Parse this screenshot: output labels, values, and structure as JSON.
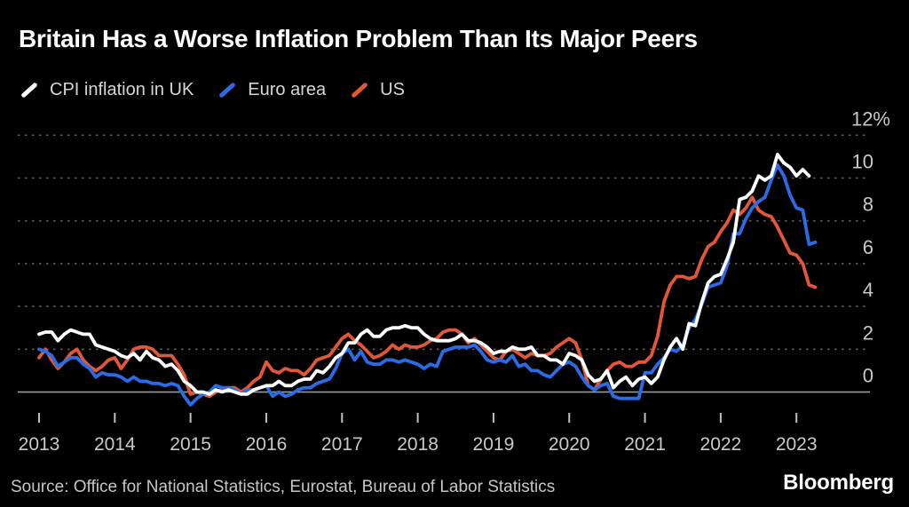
{
  "title": "Britain Has a Worse Inflation Problem Than Its Major Peers",
  "footer": {
    "source": "Source: Office for National Statistics, Eurostat, Bureau of Labor Statistics",
    "brand": "Bloomberg"
  },
  "chart_data": {
    "type": "line",
    "frequency": "monthly",
    "x_range": [
      "2013-01",
      "2023-04"
    ],
    "ylim": [
      -1,
      12.5
    ],
    "grid": "horizontal-dashed",
    "legend_position": "top-left",
    "background_color": "#000000",
    "x_axis": {
      "ticks": [
        "2013",
        "2014",
        "2015",
        "2016",
        "2017",
        "2018",
        "2019",
        "2020",
        "2021",
        "2022",
        "2023"
      ]
    },
    "y_axis": {
      "unit": "percent",
      "ticks": [
        {
          "value": 12,
          "label": "12%"
        },
        {
          "value": 10,
          "label": "10"
        },
        {
          "value": 8,
          "label": "8"
        },
        {
          "value": 6,
          "label": "6"
        },
        {
          "value": 4,
          "label": "4"
        },
        {
          "value": 2,
          "label": "2"
        },
        {
          "value": 0,
          "label": "0"
        }
      ]
    },
    "series": [
      {
        "name": "CPI inflation in UK",
        "color": "#ffffff",
        "values": [
          2.7,
          2.8,
          2.8,
          2.4,
          2.7,
          2.9,
          2.8,
          2.7,
          2.7,
          2.2,
          2.1,
          2.0,
          1.9,
          1.7,
          1.6,
          1.8,
          1.5,
          1.9,
          1.6,
          1.5,
          1.2,
          1.3,
          1.0,
          0.5,
          0.3,
          0.0,
          0.0,
          -0.1,
          0.1,
          0.0,
          0.1,
          0.0,
          -0.1,
          -0.1,
          0.1,
          0.2,
          0.3,
          0.3,
          0.5,
          0.3,
          0.3,
          0.5,
          0.6,
          0.6,
          1.0,
          0.9,
          1.2,
          1.6,
          1.8,
          2.3,
          2.3,
          2.7,
          2.9,
          2.6,
          2.6,
          2.9,
          3.0,
          3.0,
          3.1,
          3.0,
          3.0,
          2.7,
          2.5,
          2.4,
          2.4,
          2.4,
          2.5,
          2.7,
          2.4,
          2.4,
          2.3,
          2.1,
          1.8,
          1.9,
          1.9,
          2.1,
          2.0,
          2.0,
          2.1,
          1.7,
          1.7,
          1.5,
          1.5,
          1.3,
          1.8,
          1.7,
          1.5,
          0.8,
          0.5,
          0.6,
          1.0,
          0.2,
          0.5,
          0.7,
          0.3,
          0.6,
          0.7,
          0.4,
          0.7,
          1.5,
          2.1,
          2.5,
          2.0,
          3.2,
          3.1,
          4.2,
          5.1,
          5.4,
          5.5,
          6.2,
          7.0,
          9.0,
          9.1,
          9.4,
          10.1,
          9.9,
          10.1,
          11.1,
          10.7,
          10.5,
          10.1,
          10.4,
          10.1,
          null
        ]
      },
      {
        "name": "Euro area",
        "color": "#2b6ce6",
        "values": [
          2.0,
          1.9,
          1.7,
          1.2,
          1.4,
          1.6,
          1.6,
          1.3,
          1.1,
          0.7,
          0.9,
          0.8,
          0.8,
          0.7,
          0.5,
          0.7,
          0.5,
          0.5,
          0.4,
          0.4,
          0.3,
          0.4,
          0.3,
          -0.2,
          -0.6,
          -0.3,
          -0.1,
          0.0,
          0.3,
          0.2,
          0.2,
          0.1,
          -0.1,
          0.1,
          0.1,
          0.2,
          0.3,
          -0.2,
          0.0,
          -0.2,
          -0.1,
          0.1,
          0.2,
          0.2,
          0.4,
          0.5,
          0.6,
          1.1,
          1.8,
          2.0,
          1.5,
          1.9,
          1.4,
          1.3,
          1.3,
          1.5,
          1.5,
          1.4,
          1.5,
          1.4,
          1.3,
          1.1,
          1.3,
          1.2,
          1.9,
          2.0,
          2.1,
          2.1,
          2.1,
          2.2,
          1.9,
          1.5,
          1.4,
          1.5,
          1.4,
          1.7,
          1.2,
          1.3,
          1.0,
          1.0,
          0.8,
          0.7,
          1.0,
          1.3,
          1.4,
          1.2,
          0.7,
          0.3,
          0.1,
          0.3,
          0.4,
          -0.2,
          -0.3,
          -0.3,
          -0.3,
          -0.3,
          0.9,
          0.9,
          1.3,
          1.6,
          2.0,
          1.9,
          2.2,
          3.0,
          3.4,
          4.1,
          4.9,
          5.0,
          5.1,
          5.9,
          7.4,
          7.4,
          8.1,
          8.6,
          8.9,
          9.1,
          9.9,
          10.6,
          10.1,
          9.2,
          8.6,
          8.5,
          6.9,
          7.0
        ]
      },
      {
        "name": "US",
        "color": "#e25738",
        "values": [
          1.6,
          2.0,
          1.5,
          1.1,
          1.4,
          1.8,
          2.0,
          1.5,
          1.2,
          1.0,
          1.2,
          1.5,
          1.6,
          1.1,
          1.5,
          2.0,
          2.1,
          2.1,
          2.0,
          1.7,
          1.7,
          1.7,
          1.3,
          0.8,
          -0.1,
          0.0,
          -0.1,
          -0.2,
          0.0,
          0.1,
          0.2,
          0.2,
          0.0,
          0.2,
          0.5,
          0.7,
          1.4,
          1.0,
          0.9,
          1.1,
          1.0,
          1.0,
          0.8,
          1.1,
          1.5,
          1.6,
          1.7,
          2.1,
          2.5,
          2.7,
          2.4,
          2.2,
          1.9,
          1.6,
          1.7,
          1.9,
          2.2,
          2.0,
          2.2,
          2.1,
          2.1,
          2.2,
          2.4,
          2.5,
          2.8,
          2.9,
          2.9,
          2.7,
          2.3,
          2.5,
          2.2,
          1.9,
          1.6,
          1.5,
          1.9,
          2.0,
          1.8,
          1.6,
          1.8,
          1.7,
          1.7,
          1.8,
          2.1,
          2.3,
          2.5,
          2.3,
          1.5,
          0.3,
          0.1,
          0.6,
          1.0,
          1.3,
          1.4,
          1.2,
          1.2,
          1.4,
          1.4,
          1.7,
          2.6,
          4.2,
          5.0,
          5.4,
          5.4,
          5.3,
          5.4,
          6.2,
          6.8,
          7.0,
          7.5,
          7.9,
          8.5,
          8.3,
          8.6,
          9.1,
          8.5,
          8.3,
          8.2,
          7.7,
          7.1,
          6.5,
          6.4,
          6.0,
          5.0,
          4.9
        ]
      }
    ]
  }
}
